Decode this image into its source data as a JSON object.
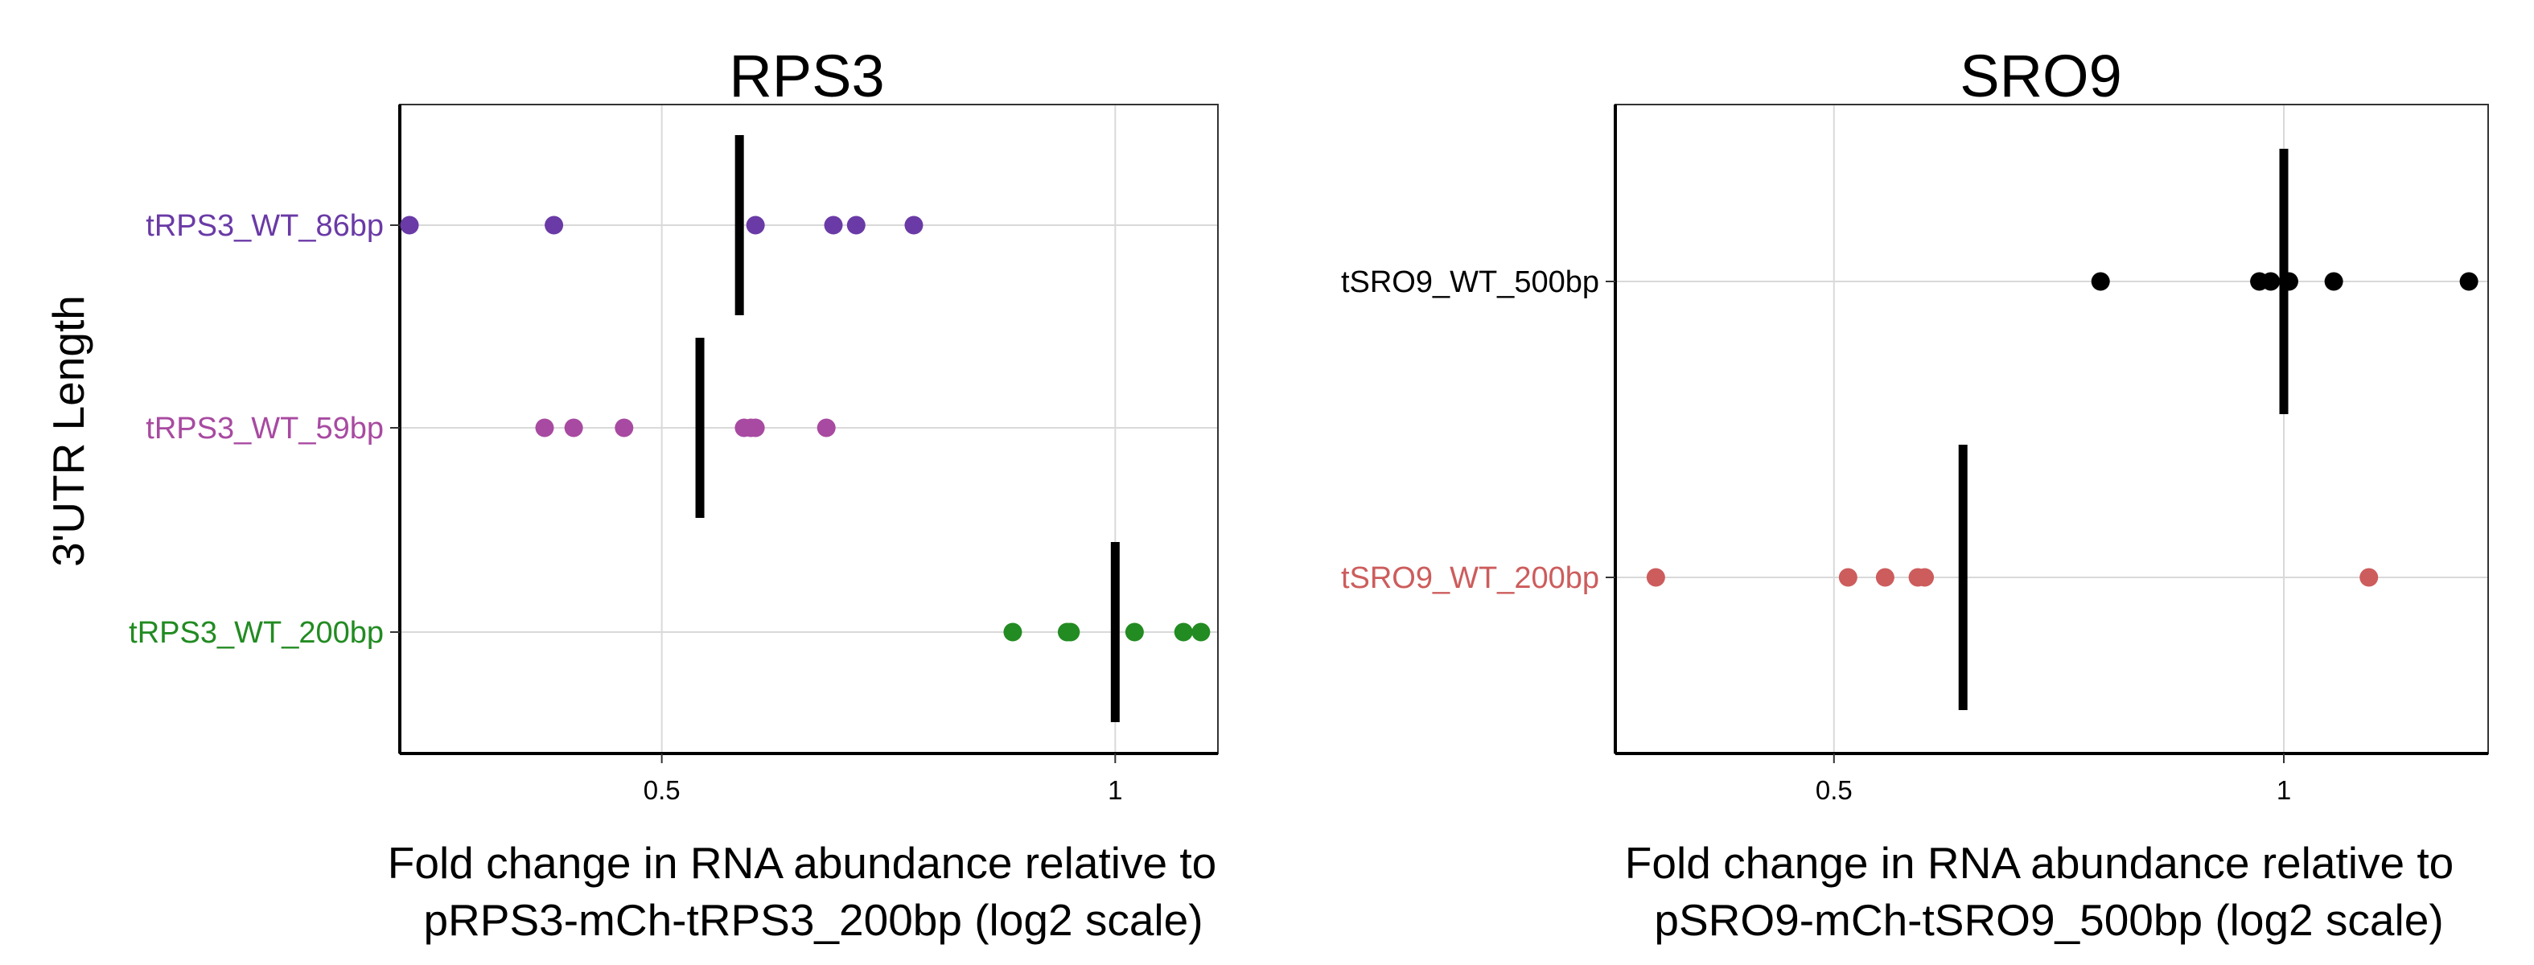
{
  "chart_data": [
    {
      "type": "scatter",
      "scale": "log2",
      "title": "RPS3",
      "xlabel": [
        "Fold change in RNA abundance relative to",
        "pRPS3-mCh-tRPS3_200bp (log2 scale)"
      ],
      "ylabel": "3'UTR Length",
      "x_ticks": [
        {
          "value": 0.5,
          "label": "0.5"
        },
        {
          "value": 1,
          "label": "1"
        }
      ],
      "xlim": [
        0.335,
        1.17
      ],
      "grid": true,
      "categories": [
        {
          "name": "tRPS3_WT_86bp",
          "color": "#6a3aa6",
          "points": [
            0.34,
            0.424,
            0.577,
            0.65,
            0.673,
            0.735
          ],
          "mean": 0.563
        },
        {
          "name": "tRPS3_WT_59bp",
          "color": "#a84aa1",
          "points": [
            0.418,
            0.437,
            0.472,
            0.567,
            0.573,
            0.577,
            0.643
          ],
          "mean": 0.53
        },
        {
          "name": "tRPS3_WT_200bp",
          "color": "#228b22",
          "points": [
            0.855,
            0.929,
            0.934,
            1.03,
            1.11,
            1.14
          ],
          "mean": 1.0
        }
      ]
    },
    {
      "type": "scatter",
      "scale": "log2",
      "title": "SRO9",
      "xlabel": [
        "Fold change in RNA abundance relative to",
        "pSRO9-mCh-tSRO9_500bp (log2 scale)"
      ],
      "ylabel": "",
      "x_ticks": [
        {
          "value": 0.5,
          "label": "0.5"
        },
        {
          "value": 1,
          "label": "1"
        }
      ],
      "xlim": [
        0.357,
        1.37
      ],
      "grid": true,
      "categories": [
        {
          "name": "tSRO9_WT_500bp",
          "color": "#000000",
          "points": [
            0.754,
            0.963,
            0.98,
            1.008,
            1.08,
            1.33
          ],
          "mean": 1.0
        },
        {
          "name": "tSRO9_WT_200bp",
          "color": "#cd5c5c",
          "points": [
            0.38,
            0.511,
            0.541,
            0.569,
            0.575,
            1.14
          ],
          "mean": 0.61
        }
      ]
    }
  ]
}
